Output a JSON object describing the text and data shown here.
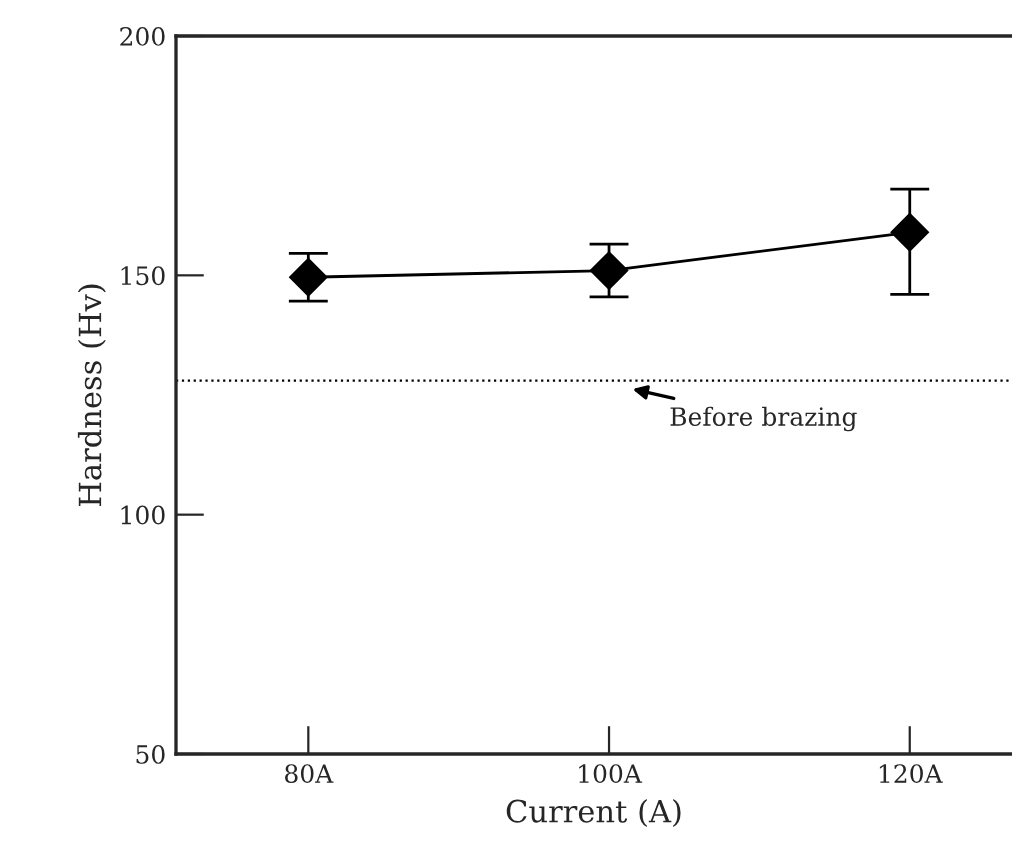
{
  "chart_data": {
    "type": "line",
    "xlabel": "Current (A)",
    "ylabel": "Hardness (Hv)",
    "categories": [
      "80A",
      "100A",
      "120A"
    ],
    "series": [
      {
        "color": "#000000",
        "values": [
          149.6,
          151,
          159
        ],
        "errors": [
          5,
          5.5,
          [
            146,
            168
          ]
        ]
      }
    ],
    "marker": "diamond",
    "line_style": "solid",
    "ylim": [
      50,
      200
    ],
    "yticks": [
      50,
      100,
      150,
      200
    ],
    "grid": false,
    "legend": false,
    "ref_lines": [
      {
        "axis": "y",
        "value": 128,
        "line_style": "dotted",
        "color": "#000000"
      }
    ],
    "annotations": [
      {
        "text": "Before brazing",
        "x": "100A",
        "y": 128
      }
    ]
  }
}
